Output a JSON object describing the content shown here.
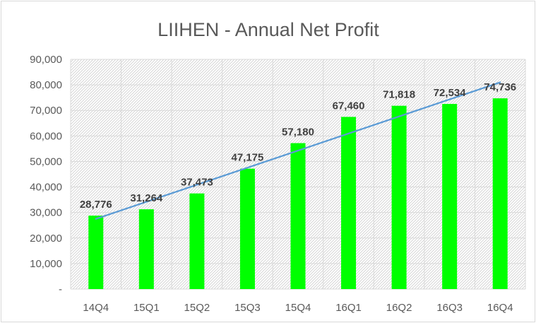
{
  "chart_data": {
    "type": "bar",
    "title": "LIIHEN - Annual Net Profit",
    "xlabel": "",
    "ylabel": "",
    "categories": [
      "14Q4",
      "15Q1",
      "15Q2",
      "15Q3",
      "15Q4",
      "16Q1",
      "16Q2",
      "16Q3",
      "16Q4"
    ],
    "series": [
      {
        "name": "Annual Net Profit",
        "values": [
          28776,
          31264,
          37473,
          47175,
          57180,
          67460,
          71818,
          72534,
          74736
        ],
        "labels": [
          "28,776",
          "31,264",
          "37,473",
          "47,175",
          "57,180",
          "67,460",
          "71,818",
          "72,534",
          "74,736"
        ],
        "color": "#00ff00"
      }
    ],
    "trendline": {
      "type": "linear",
      "start_value": 27500,
      "end_value": 81000,
      "color": "#5b9bd5"
    },
    "ylim": [
      0,
      90000
    ],
    "yticks": [
      0,
      10000,
      20000,
      30000,
      40000,
      50000,
      60000,
      70000,
      80000,
      90000
    ],
    "ytick_labels": [
      "-",
      "10,000",
      "20,000",
      "30,000",
      "40,000",
      "50,000",
      "60,000",
      "70,000",
      "80,000",
      "90,000"
    ],
    "grid": true,
    "legend": "none"
  }
}
